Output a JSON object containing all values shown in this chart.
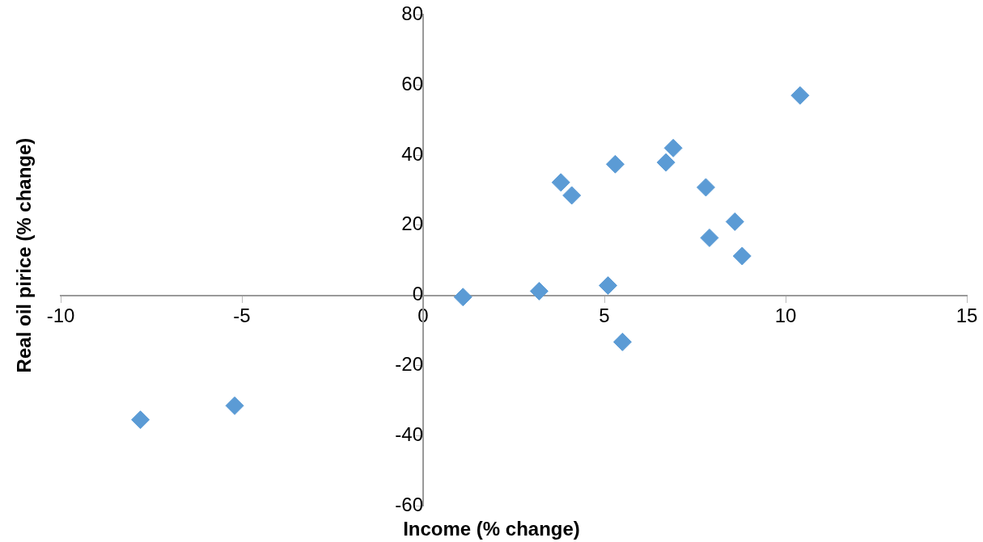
{
  "chart_data": {
    "type": "scatter",
    "xlabel": "Income (% change)",
    "ylabel": "Real oil pirice (% change)",
    "x": [
      -7.8,
      -5.2,
      1.1,
      3.2,
      3.8,
      4.1,
      5.1,
      5.3,
      5.5,
      6.7,
      6.9,
      7.8,
      7.9,
      8.6,
      8.8,
      10.4
    ],
    "series": [
      {
        "color": "#5b9bd5",
        "values": [
          -35.5,
          -31.5,
          -0.5,
          1.2,
          32.2,
          28.5,
          2.8,
          37.4,
          -13.3,
          37.9,
          42,
          30.8,
          16.4,
          21,
          11.2,
          57
        ]
      }
    ],
    "xlim": [
      -10,
      15
    ],
    "xticks": [
      -10,
      -5,
      0,
      5,
      10,
      15
    ],
    "ylim": [
      -60,
      80
    ],
    "yticks": [
      -60,
      -40,
      -20,
      0,
      20,
      40,
      60,
      80
    ],
    "grid": false,
    "legend": false,
    "marker": "diamond"
  }
}
